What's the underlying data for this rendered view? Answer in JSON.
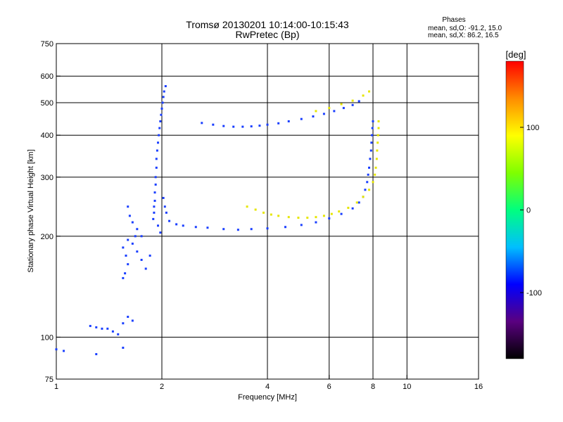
{
  "chart_data": {
    "type": "scatter",
    "title": "Tromsø 20130201 10:14:00-10:15:43",
    "subtitle": "RwPretec (Bp)",
    "xlabel": "Frequency [MHz]",
    "ylabel": "Stationary phase Virtual Height [km]",
    "x_scale": "log",
    "y_scale": "log",
    "xlim": [
      1,
      16
    ],
    "ylim": [
      75,
      750
    ],
    "x_ticks": [
      1,
      2,
      4,
      6,
      8,
      10,
      16
    ],
    "x_tick_labels": [
      "1",
      "2",
      "4",
      "6",
      "8",
      "10",
      "16"
    ],
    "y_ticks": [
      75,
      100,
      200,
      300,
      400,
      500,
      600,
      750
    ],
    "y_tick_labels": [
      "75",
      "100",
      "200",
      "300",
      "400",
      "500",
      "600",
      "750"
    ],
    "x_grid": [
      2,
      4,
      6,
      8,
      10
    ],
    "y_grid": [
      100,
      200,
      300,
      400,
      500,
      600
    ],
    "legend": {
      "title": "Phases",
      "lines": [
        "mean, sd,O: -91.2, 15.0",
        "mean, sd,X:  86.2, 16.5"
      ],
      "placement": "top-right"
    },
    "colorbar": {
      "label": "[deg]",
      "range": [
        -180,
        180
      ],
      "ticks": [
        100,
        0,
        -100
      ],
      "tick_labels": [
        "100",
        "0",
        "-100"
      ],
      "colors": [
        "#000000",
        "#5a0080",
        "#0000ff",
        "#00bfff",
        "#00ff7f",
        "#7fff00",
        "#ffff00",
        "#ff8c00",
        "#ff0000"
      ]
    },
    "series": [
      {
        "mode": "O",
        "color": "#1a3fff",
        "points": [
          [
            2.05,
            560
          ],
          [
            2.03,
            540
          ],
          [
            2.02,
            520
          ],
          [
            2.01,
            500
          ],
          [
            2.0,
            480
          ],
          [
            1.99,
            460
          ],
          [
            1.98,
            440
          ],
          [
            1.97,
            420
          ],
          [
            1.96,
            400
          ],
          [
            1.95,
            380
          ],
          [
            1.94,
            360
          ],
          [
            1.93,
            340
          ],
          [
            1.93,
            320
          ],
          [
            1.92,
            300
          ],
          [
            1.92,
            285
          ],
          [
            1.91,
            270
          ],
          [
            1.91,
            255
          ],
          [
            1.9,
            245
          ],
          [
            1.9,
            235
          ],
          [
            1.89,
            225
          ],
          [
            1.95,
            215
          ],
          [
            1.98,
            205
          ],
          [
            2.02,
            260
          ],
          [
            2.04,
            245
          ],
          [
            2.06,
            235
          ],
          [
            2.1,
            222
          ],
          [
            2.2,
            217
          ],
          [
            2.3,
            215
          ],
          [
            2.5,
            213
          ],
          [
            2.7,
            212
          ],
          [
            3.0,
            210
          ],
          [
            3.3,
            209
          ],
          [
            3.6,
            210
          ],
          [
            4.0,
            211
          ],
          [
            4.5,
            213
          ],
          [
            5.0,
            216
          ],
          [
            5.5,
            220
          ],
          [
            6.0,
            226
          ],
          [
            6.5,
            233
          ],
          [
            7.0,
            242
          ],
          [
            7.3,
            252
          ],
          [
            7.5,
            262
          ],
          [
            7.6,
            275
          ],
          [
            7.7,
            290
          ],
          [
            7.75,
            305
          ],
          [
            7.8,
            320
          ],
          [
            7.85,
            340
          ],
          [
            7.9,
            360
          ],
          [
            7.92,
            380
          ],
          [
            7.95,
            400
          ],
          [
            7.97,
            420
          ],
          [
            8.0,
            440
          ],
          [
            1.6,
            245
          ],
          [
            1.62,
            230
          ],
          [
            1.65,
            220
          ],
          [
            1.7,
            210
          ],
          [
            1.75,
            200
          ],
          [
            1.6,
            195
          ],
          [
            1.55,
            185
          ],
          [
            1.58,
            175
          ],
          [
            1.6,
            165
          ],
          [
            1.57,
            155
          ],
          [
            1.55,
            150
          ],
          [
            1.65,
            190
          ],
          [
            1.7,
            180
          ],
          [
            1.75,
            170
          ],
          [
            1.8,
            160
          ],
          [
            1.85,
            175
          ],
          [
            1.68,
            200
          ],
          [
            1.25,
            108
          ],
          [
            1.3,
            107
          ],
          [
            1.35,
            106
          ],
          [
            1.4,
            106
          ],
          [
            1.45,
            104
          ],
          [
            1.5,
            102
          ],
          [
            1.55,
            110
          ],
          [
            1.6,
            115
          ],
          [
            1.65,
            112
          ],
          [
            1.0,
            92
          ],
          [
            1.05,
            91
          ],
          [
            1.3,
            89
          ],
          [
            1.55,
            93
          ],
          [
            2.6,
            435
          ],
          [
            2.8,
            430
          ],
          [
            3.0,
            426
          ],
          [
            3.2,
            424
          ],
          [
            3.4,
            424
          ],
          [
            3.6,
            425
          ],
          [
            3.8,
            427
          ],
          [
            4.0,
            430
          ],
          [
            4.3,
            434
          ],
          [
            4.6,
            440
          ],
          [
            5.0,
            447
          ],
          [
            5.4,
            455
          ],
          [
            5.8,
            463
          ],
          [
            6.2,
            472
          ],
          [
            6.6,
            482
          ],
          [
            7.0,
            492
          ],
          [
            7.3,
            505
          ]
        ]
      },
      {
        "mode": "X",
        "color": "#e6e600",
        "points": [
          [
            3.5,
            245
          ],
          [
            3.7,
            240
          ],
          [
            3.9,
            235
          ],
          [
            4.1,
            232
          ],
          [
            4.3,
            230
          ],
          [
            4.6,
            228
          ],
          [
            4.9,
            227
          ],
          [
            5.2,
            227
          ],
          [
            5.5,
            228
          ],
          [
            5.8,
            230
          ],
          [
            6.1,
            233
          ],
          [
            6.4,
            237
          ],
          [
            6.8,
            243
          ],
          [
            7.2,
            252
          ],
          [
            7.5,
            262
          ],
          [
            7.8,
            275
          ],
          [
            8.0,
            290
          ],
          [
            8.1,
            305
          ],
          [
            8.15,
            320
          ],
          [
            8.2,
            340
          ],
          [
            8.22,
            360
          ],
          [
            8.25,
            380
          ],
          [
            8.27,
            400
          ],
          [
            8.3,
            420
          ],
          [
            8.3,
            440
          ],
          [
            5.5,
            472
          ],
          [
            6.0,
            482
          ],
          [
            6.5,
            495
          ],
          [
            7.0,
            507
          ],
          [
            7.5,
            525
          ],
          [
            7.8,
            540
          ]
        ]
      }
    ]
  }
}
